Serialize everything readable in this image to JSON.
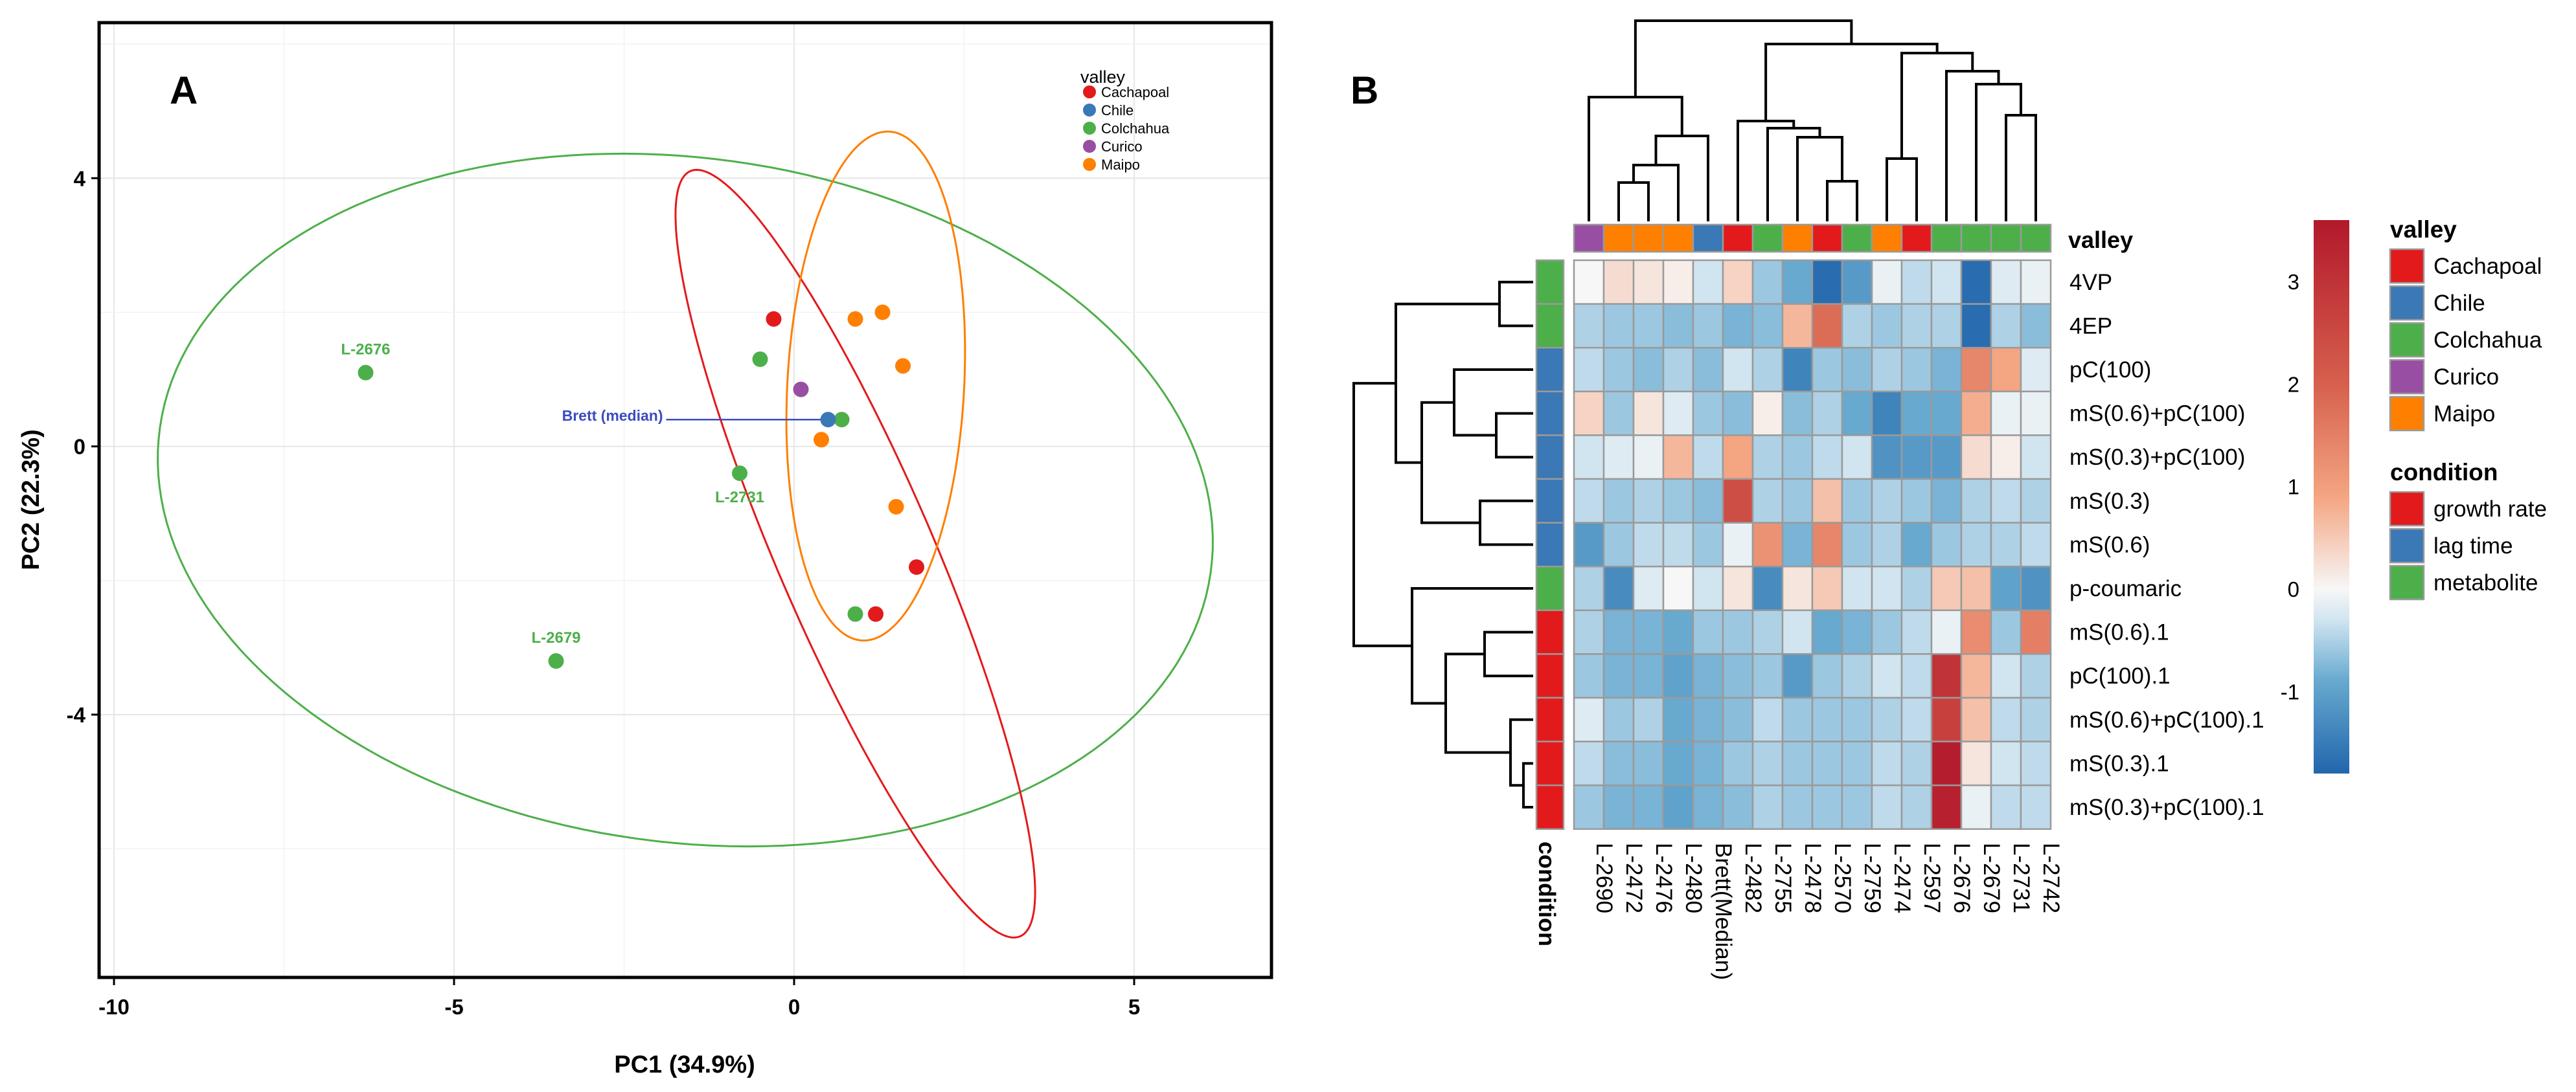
{
  "panels": {
    "a_label": "A",
    "b_label": "B"
  },
  "chart_data": [
    {
      "type": "scatter",
      "panel": "A",
      "xlabel": "PC1 (34.9%)",
      "ylabel": "PC2 (22.3%)",
      "xlim": [
        -10.2,
        7
      ],
      "ylim": [
        -7.9,
        6.3
      ],
      "xticks": [
        -10,
        -5,
        0,
        5
      ],
      "xtick_labels": [
        "-10",
        "-5",
        "0",
        "5"
      ],
      "yticks": [
        -4,
        0,
        4
      ],
      "ytick_labels": [
        "-4",
        "0",
        "4"
      ],
      "grid": true,
      "legend": {
        "title": "valley",
        "position": "top-right",
        "items": [
          {
            "label": "Cachapoal",
            "color": "#e31a1c"
          },
          {
            "label": "Chile",
            "color": "#3a78b6"
          },
          {
            "label": "Colchahua",
            "color": "#4daf4a"
          },
          {
            "label": "Curico",
            "color": "#984ea3"
          },
          {
            "label": "Maipo",
            "color": "#ff7f00"
          }
        ]
      },
      "points": [
        {
          "x": -6.3,
          "y": 1.1,
          "valley": "Colchahua",
          "label": "L-2676"
        },
        {
          "x": -3.5,
          "y": -3.2,
          "valley": "Colchahua",
          "label": "L-2679"
        },
        {
          "x": -0.8,
          "y": -0.4,
          "valley": "Colchahua",
          "label": "L-2731"
        },
        {
          "x": -0.5,
          "y": 1.3,
          "valley": "Colchahua",
          "label": ""
        },
        {
          "x": 0.7,
          "y": 0.4,
          "valley": "Colchahua",
          "label": ""
        },
        {
          "x": 0.9,
          "y": -2.5,
          "valley": "Colchahua",
          "label": ""
        },
        {
          "x": -0.3,
          "y": 1.9,
          "valley": "Cachapoal",
          "label": ""
        },
        {
          "x": 1.2,
          "y": -2.5,
          "valley": "Cachapoal",
          "label": ""
        },
        {
          "x": 1.8,
          "y": -1.8,
          "valley": "Cachapoal",
          "label": ""
        },
        {
          "x": 0.5,
          "y": 0.4,
          "valley": "Chile",
          "label": ""
        },
        {
          "x": 0.1,
          "y": 0.85,
          "valley": "Curico",
          "label": ""
        },
        {
          "x": 0.9,
          "y": 1.9,
          "valley": "Maipo",
          "label": ""
        },
        {
          "x": 1.3,
          "y": 2.0,
          "valley": "Maipo",
          "label": ""
        },
        {
          "x": 1.6,
          "y": 1.2,
          "valley": "Maipo",
          "label": ""
        },
        {
          "x": 0.4,
          "y": 0.1,
          "valley": "Maipo",
          "label": ""
        },
        {
          "x": 1.5,
          "y": -0.9,
          "valley": "Maipo",
          "label": ""
        }
      ],
      "annotation": {
        "text": "Brett (median)",
        "x": 0.5,
        "y": 0.4,
        "color": "#3b4cc0"
      },
      "ellipses": [
        {
          "valley": "Colchahua",
          "cx": -1.6,
          "cy": -0.8,
          "rx": 7.8,
          "ry": 5.1,
          "angle_deg": -8
        },
        {
          "valley": "Cachapoal",
          "cx": 0.9,
          "cy": -1.6,
          "rx": 6.2,
          "ry": 1.15,
          "angle_deg": -67
        },
        {
          "valley": "Maipo",
          "cx": 1.2,
          "cy": 0.9,
          "rx": 1.3,
          "ry": 3.8,
          "angle_deg": -3
        }
      ]
    },
    {
      "type": "heatmap",
      "panel": "B",
      "columns": [
        "L-2690",
        "L-2472",
        "L-2476",
        "L-2480",
        "Brett(Median)",
        "L-2482",
        "L-2755",
        "L-2478",
        "L-2570",
        "L-2759",
        "L-2474",
        "L-2597",
        "L-2676",
        "L-2679",
        "L-2731",
        "L-2742"
      ],
      "column_valley": [
        "Curico",
        "Maipo",
        "Maipo",
        "Maipo",
        "Chile",
        "Cachapoal",
        "Colchahua",
        "Maipo",
        "Cachapoal",
        "Colchahua",
        "Maipo",
        "Cachapoal",
        "Colchahua",
        "Colchahua",
        "Colchahua",
        "Colchahua"
      ],
      "rows": [
        "4VP",
        "4EP",
        "pC(100)",
        "mS(0.6)+pC(100)",
        "mS(0.3)+pC(100)",
        "mS(0.3)",
        "mS(0.6)",
        "p-coumaric",
        "mS(0.6).1",
        "pC(100).1",
        "mS(0.6)+pC(100).1",
        "mS(0.3).1",
        "mS(0.3)+pC(100).1"
      ],
      "row_condition": [
        "metabolite",
        "metabolite",
        "lag time",
        "lag time",
        "lag time",
        "lag time",
        "lag time",
        "metabolite",
        "growth rate",
        "growth rate",
        "growth rate",
        "growth rate",
        "growth rate"
      ],
      "values": [
        [
          0.0,
          0.3,
          0.2,
          0.1,
          -0.3,
          0.4,
          -0.6,
          -0.9,
          -1.7,
          -1.1,
          -0.1,
          -0.4,
          -0.3,
          -1.7,
          -0.2,
          -0.1
        ],
        [
          -0.5,
          -0.6,
          -0.6,
          -0.7,
          -0.6,
          -0.8,
          -0.7,
          0.7,
          1.8,
          -0.5,
          -0.6,
          -0.5,
          -0.5,
          -1.7,
          -0.5,
          -0.7
        ],
        [
          -0.4,
          -0.6,
          -0.7,
          -0.5,
          -0.7,
          -0.3,
          -0.5,
          -1.4,
          -0.6,
          -0.7,
          -0.5,
          -0.6,
          -0.8,
          1.4,
          0.9,
          -0.2
        ],
        [
          0.4,
          -0.6,
          0.2,
          -0.2,
          -0.6,
          -0.7,
          0.1,
          -0.7,
          -0.5,
          -0.9,
          -1.4,
          -0.9,
          -0.9,
          0.8,
          -0.1,
          -0.1
        ],
        [
          -0.3,
          -0.2,
          -0.1,
          0.7,
          -0.4,
          0.9,
          -0.5,
          -0.6,
          -0.4,
          -0.3,
          -1.2,
          -1.1,
          -1.1,
          0.3,
          0.1,
          -0.3
        ],
        [
          -0.4,
          -0.6,
          -0.5,
          -0.6,
          -0.7,
          2.4,
          -0.5,
          -0.6,
          0.6,
          -0.6,
          -0.5,
          -0.6,
          -0.8,
          -0.5,
          -0.4,
          -0.5
        ],
        [
          -1.1,
          -0.6,
          -0.4,
          -0.4,
          -0.6,
          -0.1,
          1.2,
          -0.8,
          1.4,
          -0.6,
          -0.5,
          -0.9,
          -0.6,
          -0.5,
          -0.5,
          -0.4
        ],
        [
          -0.5,
          -1.3,
          -0.2,
          0.0,
          -0.3,
          0.2,
          -1.3,
          0.2,
          0.5,
          -0.3,
          -0.3,
          -0.5,
          0.5,
          0.6,
          -1.0,
          -1.2
        ],
        [
          -0.5,
          -0.8,
          -0.8,
          -0.9,
          -0.6,
          -0.6,
          -0.5,
          -0.3,
          -0.9,
          -0.8,
          -0.6,
          -0.4,
          -0.1,
          1.3,
          -0.6,
          1.5
        ],
        [
          -0.6,
          -0.8,
          -0.8,
          -1.0,
          -0.8,
          -0.7,
          -0.6,
          -1.1,
          -0.6,
          -0.5,
          -0.3,
          -0.4,
          3.0,
          0.7,
          -0.3,
          -0.5
        ],
        [
          -0.2,
          -0.6,
          -0.5,
          -0.9,
          -0.8,
          -0.7,
          -0.4,
          -0.6,
          -0.6,
          -0.6,
          -0.5,
          -0.4,
          2.7,
          0.6,
          -0.4,
          -0.5
        ],
        [
          -0.4,
          -0.7,
          -0.7,
          -0.9,
          -0.8,
          -0.6,
          -0.5,
          -0.6,
          -0.6,
          -0.6,
          -0.4,
          -0.5,
          3.5,
          0.2,
          -0.3,
          -0.4
        ],
        [
          -0.6,
          -0.8,
          -0.8,
          -1.0,
          -0.8,
          -0.7,
          -0.5,
          -0.6,
          -0.6,
          -0.6,
          -0.4,
          -0.5,
          3.4,
          -0.1,
          -0.4,
          -0.4
        ]
      ],
      "colorbar": {
        "min": -1.8,
        "max": 3.6,
        "ticks": [
          -1,
          0,
          1,
          2,
          3
        ],
        "tick_labels": [
          "-1",
          "0",
          "1",
          "2",
          "3"
        ]
      },
      "top_annotation_label": "valley",
      "side_annotation_label": "condition",
      "legend_valley": {
        "title": "valley",
        "items": [
          {
            "label": "Cachapoal",
            "color": "#e31a1c"
          },
          {
            "label": "Chile",
            "color": "#3a78b6"
          },
          {
            "label": "Colchahua",
            "color": "#4daf4a"
          },
          {
            "label": "Curico",
            "color": "#984ea3"
          },
          {
            "label": "Maipo",
            "color": "#ff7f00"
          }
        ]
      },
      "legend_condition": {
        "title": "condition",
        "items": [
          {
            "label": "growth rate",
            "color": "#e31a1c"
          },
          {
            "label": "lag time",
            "color": "#3a78b6"
          },
          {
            "label": "metabolite",
            "color": "#4daf4a"
          }
        ]
      }
    }
  ]
}
